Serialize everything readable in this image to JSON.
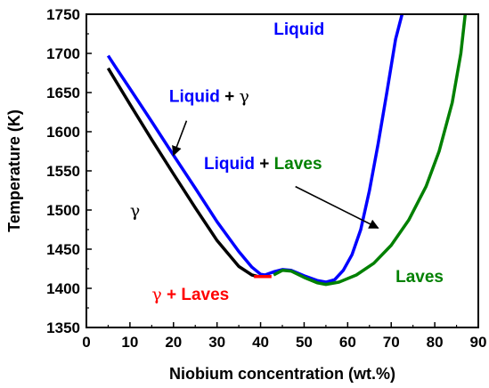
{
  "chart_data": {
    "type": "line",
    "xlabel": "Niobium concentration (wt.%)",
    "ylabel": "Temperature (K)",
    "xlim": [
      0,
      90
    ],
    "ylim": [
      1350,
      1750
    ],
    "x_ticks": [
      "0",
      "10",
      "20",
      "30",
      "40",
      "50",
      "60",
      "70",
      "80",
      "90"
    ],
    "y_ticks": [
      "1350",
      "1400",
      "1450",
      "1500",
      "1550",
      "1600",
      "1650",
      "1700",
      "1750"
    ],
    "grid": false,
    "legend": "none",
    "series": [
      {
        "color": "#0000ff",
        "points": [
          [
            5,
            1697
          ],
          [
            7,
            1680
          ],
          [
            10,
            1655
          ],
          [
            15,
            1613
          ],
          [
            20,
            1570
          ],
          [
            25,
            1528
          ],
          [
            30,
            1485
          ],
          [
            35,
            1447
          ],
          [
            38,
            1427
          ],
          [
            40,
            1418
          ],
          [
            41,
            1417
          ],
          [
            43,
            1421
          ],
          [
            45,
            1424
          ],
          [
            47,
            1423
          ],
          [
            50,
            1416
          ],
          [
            53,
            1410
          ],
          [
            55,
            1408
          ],
          [
            57,
            1411
          ],
          [
            59,
            1423
          ],
          [
            61,
            1443
          ],
          [
            63,
            1475
          ],
          [
            65,
            1525
          ],
          [
            67,
            1585
          ],
          [
            69,
            1650
          ],
          [
            71,
            1718
          ],
          [
            72.5,
            1750
          ]
        ]
      },
      {
        "color": "#000000",
        "points": [
          [
            5,
            1681
          ],
          [
            10,
            1635
          ],
          [
            15,
            1590
          ],
          [
            20,
            1546
          ],
          [
            25,
            1503
          ],
          [
            30,
            1461
          ],
          [
            35,
            1428
          ],
          [
            38,
            1417
          ],
          [
            39.5,
            1415
          ]
        ]
      },
      {
        "color": "#008000",
        "points": [
          [
            43,
            1417
          ],
          [
            45,
            1423
          ],
          [
            47,
            1422
          ],
          [
            50,
            1414
          ],
          [
            53,
            1407
          ],
          [
            55,
            1405
          ],
          [
            58,
            1408
          ],
          [
            62,
            1417
          ],
          [
            66,
            1432
          ],
          [
            70,
            1455
          ],
          [
            74,
            1487
          ],
          [
            78,
            1530
          ],
          [
            81,
            1575
          ],
          [
            84,
            1637
          ],
          [
            86,
            1700
          ],
          [
            87,
            1750
          ]
        ]
      },
      {
        "color": "#ff0000",
        "points": [
          [
            38.5,
            1415
          ],
          [
            42.5,
            1415
          ]
        ]
      }
    ],
    "annotations": [
      {
        "id": "liquid",
        "parts": [
          {
            "text": "Liquid",
            "color": "#0000ff"
          }
        ],
        "x": 43,
        "y": 1724
      },
      {
        "id": "liquid-gamma",
        "parts": [
          {
            "text": "Liquid",
            "color": "#0000ff"
          },
          {
            "text": " + ",
            "color": "#000000"
          },
          {
            "text": "γ",
            "color": "#000000",
            "glyph": true
          }
        ],
        "x": 19,
        "y": 1638,
        "arrow": {
          "from": [
            23,
            1614
          ],
          "to": [
            20,
            1570
          ]
        }
      },
      {
        "id": "liquid-laves",
        "parts": [
          {
            "text": "Liquid",
            "color": "#0000ff"
          },
          {
            "text": " + ",
            "color": "#000000"
          },
          {
            "text": "Laves",
            "color": "#008000"
          }
        ],
        "x": 27,
        "y": 1552,
        "arrow": {
          "from": [
            48,
            1530
          ],
          "to": [
            67,
            1477
          ]
        }
      },
      {
        "id": "gamma",
        "parts": [
          {
            "text": "γ",
            "color": "#000000",
            "glyph": true
          }
        ],
        "x": 10,
        "y": 1492
      },
      {
        "id": "laves",
        "parts": [
          {
            "text": "Laves",
            "color": "#008000"
          }
        ],
        "x": 71,
        "y": 1408
      },
      {
        "id": "gamma-laves",
        "parts": [
          {
            "text": "γ",
            "color": "#ff0000",
            "glyph": true
          },
          {
            "text": " + Laves",
            "color": "#ff0000"
          }
        ],
        "x": 15,
        "y": 1385
      }
    ]
  }
}
